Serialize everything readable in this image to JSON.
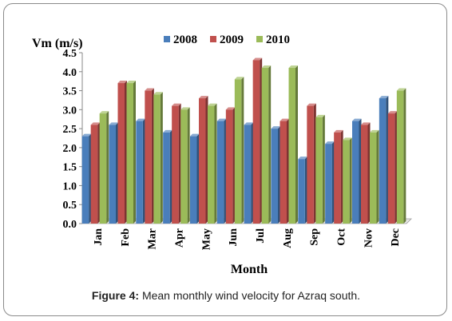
{
  "caption": {
    "label": "Figure 4:",
    "text": "Mean monthly wind velocity for Azraq south."
  },
  "chart_data": {
    "type": "bar",
    "title": "",
    "ylabel": "Vm (m/s)",
    "xlabel": "Month",
    "ylim": [
      0,
      4.5
    ],
    "yticks": [
      "0.0",
      "0.5",
      "1.0",
      "1.5",
      "2.0",
      "2.5",
      "3.0",
      "3.5",
      "4.0",
      "4.5"
    ],
    "categories": [
      "Jan",
      "Feb",
      "Mar",
      "Apr",
      "May",
      "Jun",
      "Jul",
      "Aug",
      "Sep",
      "Oct",
      "Nov",
      "Dec"
    ],
    "legend_position": "top",
    "grid": false,
    "series": [
      {
        "name": "2008",
        "color": "#4a7ebb",
        "values": [
          2.3,
          2.6,
          2.7,
          2.4,
          2.3,
          2.7,
          2.6,
          2.5,
          1.7,
          2.1,
          2.7,
          3.3
        ]
      },
      {
        "name": "2009",
        "color": "#c0504d",
        "values": [
          2.6,
          3.7,
          3.5,
          3.1,
          3.3,
          3.0,
          4.3,
          2.7,
          3.1,
          2.4,
          2.6,
          2.9
        ]
      },
      {
        "name": "2010",
        "color": "#9bbb59",
        "values": [
          2.9,
          3.7,
          3.4,
          3.0,
          3.1,
          3.8,
          4.1,
          4.1,
          2.8,
          2.2,
          2.4,
          3.5
        ]
      }
    ]
  }
}
